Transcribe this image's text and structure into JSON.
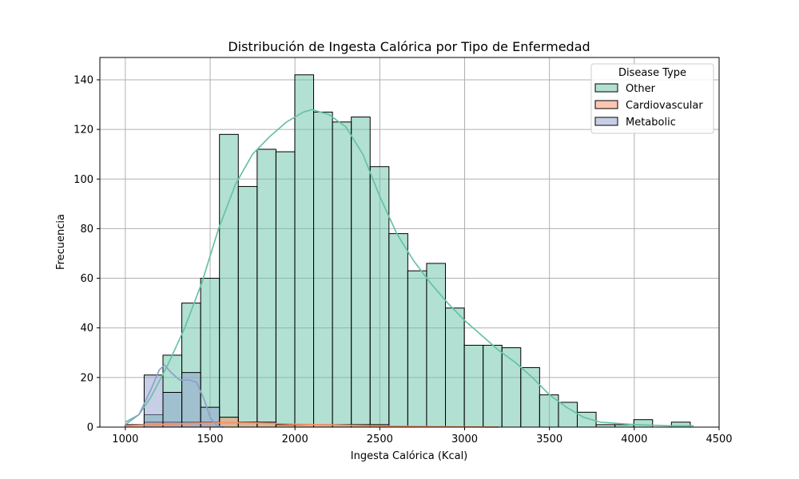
{
  "chart_data": {
    "type": "bar",
    "title": "Distribución de Ingesta Calórica por Tipo de Enfermedad",
    "xlabel": "Ingesta Calórica (Kcal)",
    "ylabel": "Frecuencia",
    "xlim": [
      850,
      4500
    ],
    "ylim": [
      0,
      149
    ],
    "xticks": [
      1000,
      1500,
      2000,
      2500,
      3000,
      3500,
      4000,
      4500
    ],
    "yticks": [
      0,
      20,
      40,
      60,
      80,
      100,
      120,
      140
    ],
    "grid": true,
    "legend": {
      "title": "Disease Type",
      "position": "top-right"
    },
    "bins": {
      "start": 1000,
      "width": 111,
      "count": 31
    },
    "series": [
      {
        "name": "Other",
        "color": "#66c2a5",
        "values": [
          0,
          5,
          29,
          50,
          60,
          118,
          97,
          112,
          111,
          142,
          127,
          123,
          125,
          105,
          78,
          63,
          66,
          48,
          33,
          33,
          32,
          24,
          13,
          10,
          6,
          1,
          1,
          3,
          0,
          2,
          0
        ],
        "kde": [
          [
            1000,
            2
          ],
          [
            1080,
            5
          ],
          [
            1150,
            12
          ],
          [
            1250,
            25
          ],
          [
            1350,
            40
          ],
          [
            1450,
            58
          ],
          [
            1550,
            80
          ],
          [
            1650,
            98
          ],
          [
            1750,
            110
          ],
          [
            1850,
            117
          ],
          [
            1950,
            123
          ],
          [
            2050,
            127
          ],
          [
            2100,
            128
          ],
          [
            2200,
            126
          ],
          [
            2300,
            121
          ],
          [
            2400,
            110
          ],
          [
            2500,
            93
          ],
          [
            2600,
            78
          ],
          [
            2700,
            67
          ],
          [
            2800,
            58
          ],
          [
            2900,
            50
          ],
          [
            3000,
            43
          ],
          [
            3100,
            37
          ],
          [
            3200,
            31
          ],
          [
            3300,
            26
          ],
          [
            3400,
            20
          ],
          [
            3500,
            13
          ],
          [
            3600,
            8
          ],
          [
            3700,
            4
          ],
          [
            3800,
            2
          ],
          [
            4000,
            1
          ],
          [
            4200,
            0.5
          ],
          [
            4350,
            0.5
          ]
        ]
      },
      {
        "name": "Cardiovascular",
        "color": "#fc8d62",
        "values": [
          1,
          2,
          2,
          2,
          2,
          4,
          2,
          2,
          1,
          1,
          1,
          1,
          1,
          1,
          0,
          0,
          0,
          0,
          0,
          0,
          0,
          0,
          0,
          0,
          0,
          0,
          0,
          0,
          0,
          0,
          0
        ],
        "kde": [
          [
            1000,
            0.5
          ],
          [
            1200,
            1
          ],
          [
            1400,
            1.5
          ],
          [
            1600,
            1.8
          ],
          [
            1800,
            1.6
          ],
          [
            2000,
            1.2
          ],
          [
            2200,
            0.9
          ],
          [
            2400,
            0.6
          ],
          [
            2600,
            0.4
          ],
          [
            2800,
            0.2
          ],
          [
            3000,
            0.1
          ],
          [
            3200,
            0
          ]
        ]
      },
      {
        "name": "Metabolic",
        "color": "#8da0cb",
        "values": [
          0,
          21,
          14,
          22,
          8,
          0,
          0,
          0,
          0,
          0,
          0,
          0,
          0,
          0,
          0,
          0,
          0,
          0,
          0,
          0,
          0,
          0,
          0,
          0,
          0,
          0,
          0,
          0,
          0,
          0,
          0
        ],
        "kde": [
          [
            1000,
            1
          ],
          [
            1080,
            5
          ],
          [
            1150,
            15
          ],
          [
            1200,
            23
          ],
          [
            1230,
            25
          ],
          [
            1270,
            22
          ],
          [
            1320,
            19
          ],
          [
            1380,
            19
          ],
          [
            1420,
            18
          ],
          [
            1460,
            12
          ],
          [
            1500,
            4
          ],
          [
            1540,
            0.5
          ],
          [
            1580,
            0
          ]
        ]
      }
    ]
  }
}
